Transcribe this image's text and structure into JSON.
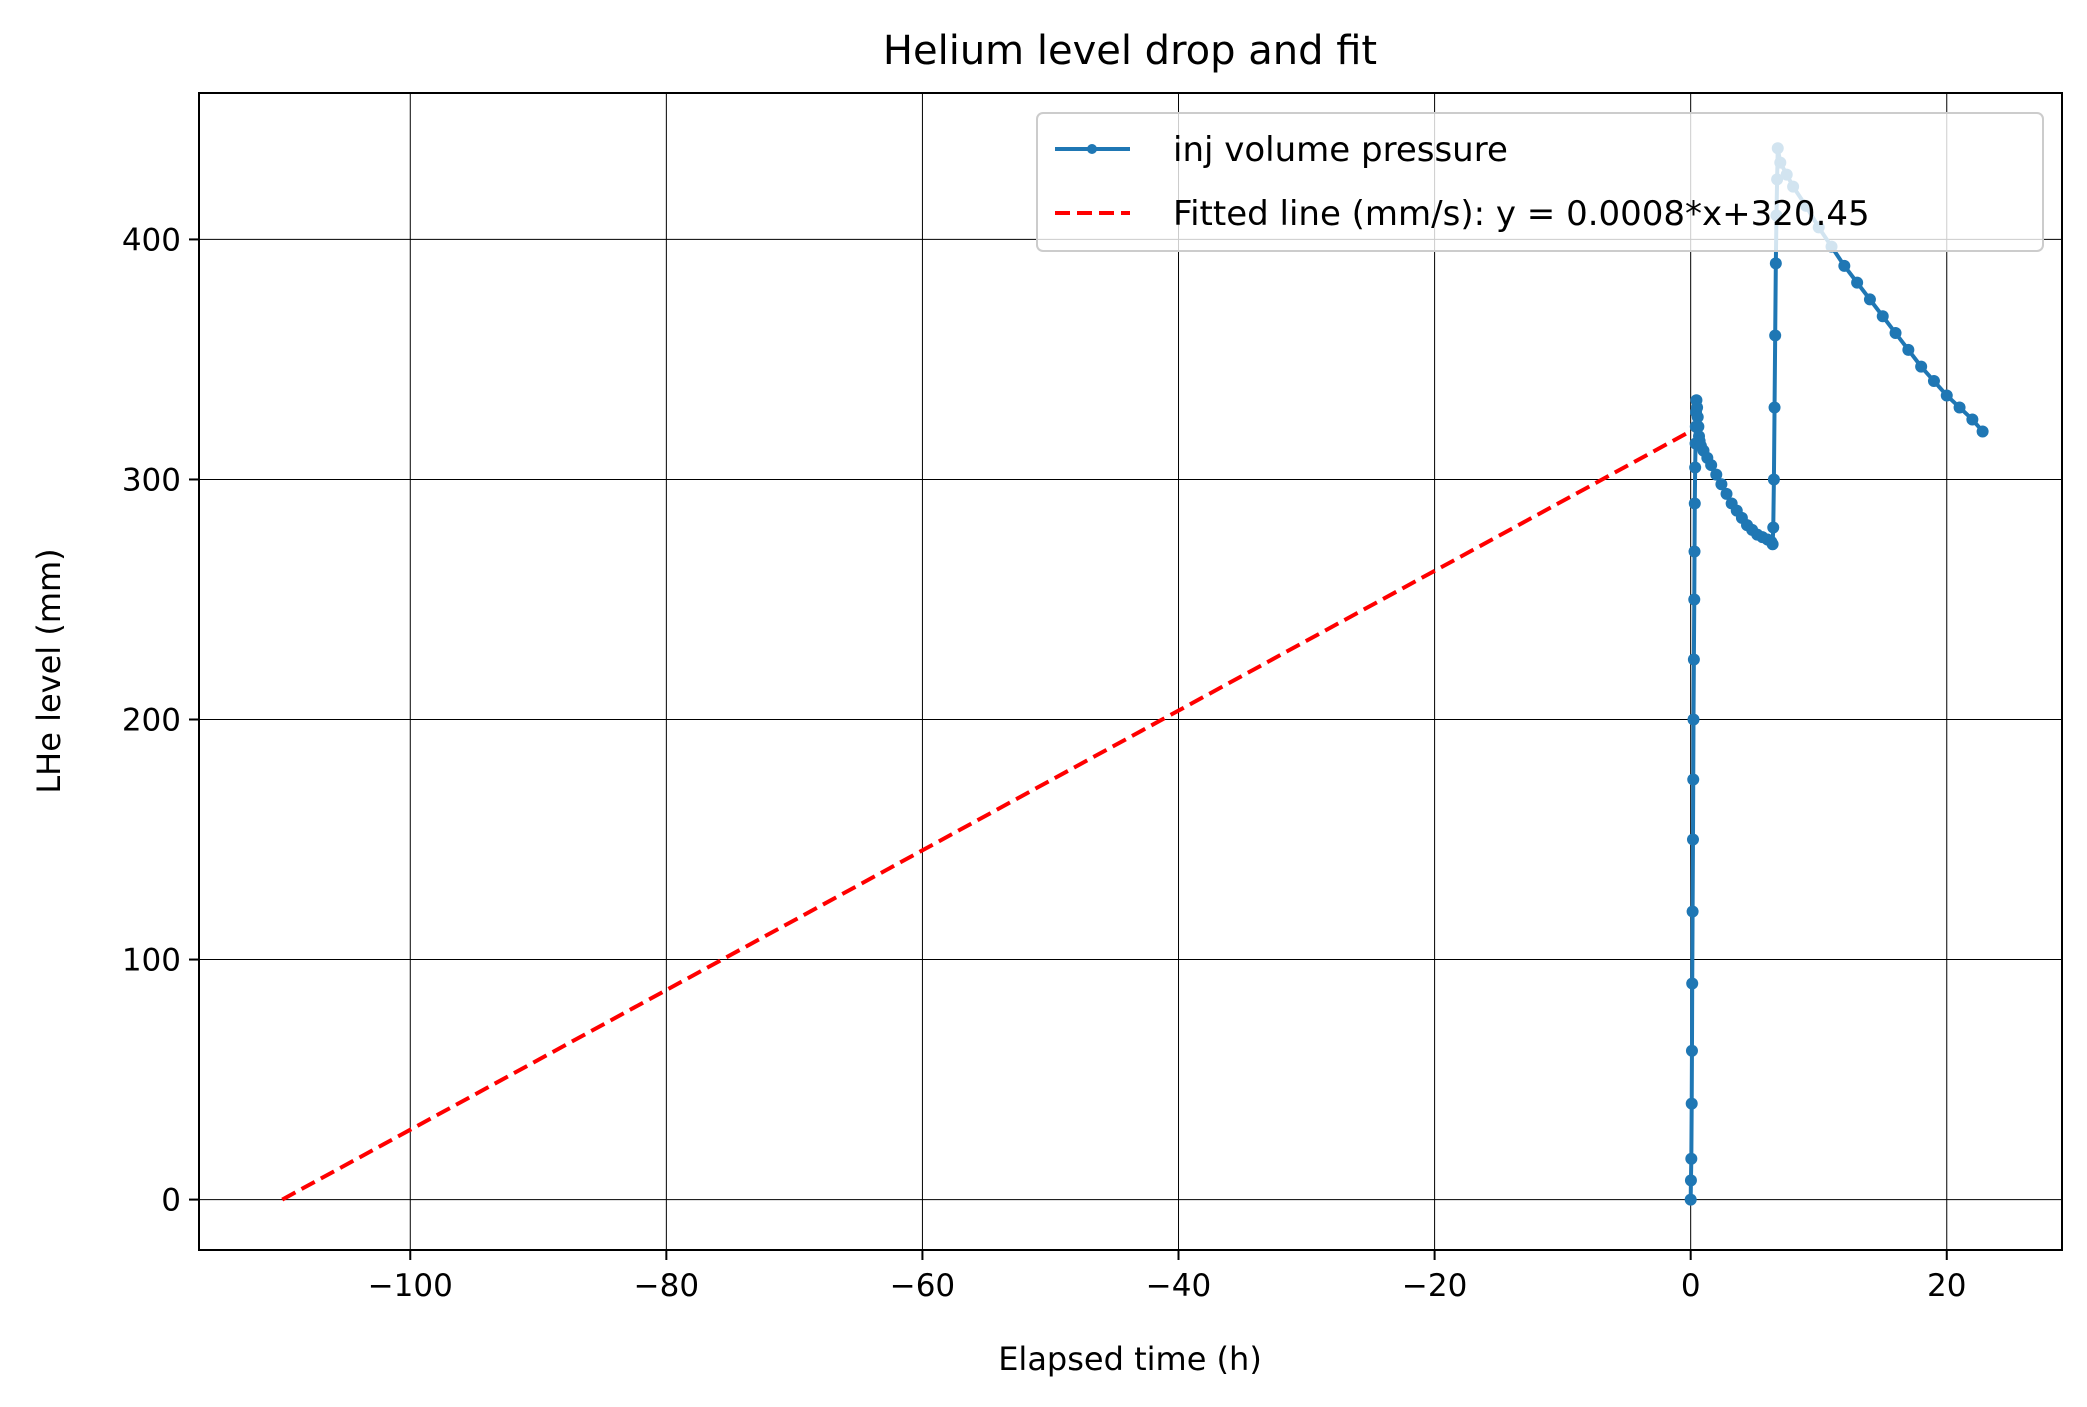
{
  "chart_data": {
    "type": "line",
    "title": "Helium level drop and fit",
    "xlabel": "Elapsed time (h)",
    "ylabel": "LHe level (mm)",
    "xlim": [
      -116.5,
      29
    ],
    "ylim": [
      -21,
      461
    ],
    "xticks": [
      -100,
      -80,
      -60,
      -40,
      -20,
      0,
      20
    ],
    "yticks": [
      0,
      100,
      200,
      300,
      400
    ],
    "grid": true,
    "legend_position": "top-right",
    "colors": {
      "measured": "#1f77b4",
      "fit": "#ff0000"
    },
    "series": [
      {
        "name": "inj volume pressure",
        "style": "solid line with point markers",
        "x": [
          0.0,
          0.02,
          0.05,
          0.08,
          0.1,
          0.12,
          0.15,
          0.18,
          0.2,
          0.22,
          0.25,
          0.28,
          0.3,
          0.32,
          0.35,
          0.38,
          0.4,
          0.42,
          0.45,
          0.5,
          0.55,
          0.6,
          0.65,
          0.7,
          0.8,
          1.0,
          1.3,
          1.6,
          2.0,
          2.4,
          2.8,
          3.2,
          3.6,
          4.0,
          4.4,
          4.8,
          5.2,
          5.6,
          6.0,
          6.3,
          6.4,
          6.45,
          6.5,
          6.55,
          6.6,
          6.65,
          6.7,
          6.75,
          6.8,
          7.0,
          7.5,
          8.0,
          9.0,
          10.0,
          11.0,
          12.0,
          13.0,
          14.0,
          15.0,
          16.0,
          17.0,
          18.0,
          19.0,
          20.0,
          21.0,
          22.0,
          22.8
        ],
        "y": [
          0,
          8,
          17,
          40,
          62,
          90,
          120,
          150,
          175,
          200,
          225,
          250,
          270,
          290,
          305,
          315,
          322,
          328,
          333,
          330,
          326,
          322,
          318,
          316,
          314,
          312,
          309,
          306,
          302,
          298,
          294,
          290,
          287,
          284,
          281,
          279,
          277,
          276,
          275,
          274,
          273,
          280,
          300,
          330,
          360,
          390,
          410,
          425,
          438,
          432,
          427,
          422,
          414,
          405,
          397,
          389,
          382,
          375,
          368,
          361,
          354,
          347,
          341,
          335,
          330,
          325,
          320
        ]
      },
      {
        "name": "Fitted line (mm/s): y = 0.0008*x+320.45",
        "style": "dashed",
        "x": [
          -110.0,
          0.3
        ],
        "y": [
          0,
          321
        ]
      }
    ]
  }
}
